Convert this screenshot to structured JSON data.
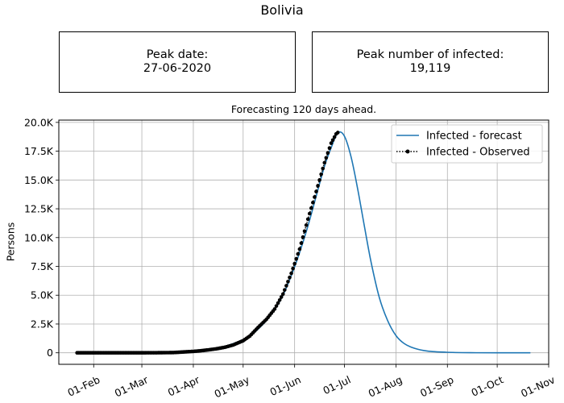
{
  "figure": {
    "title": "Bolivia",
    "peak_date_label": "Peak date:",
    "peak_date_value": "27-06-2020",
    "peak_infected_label": "Peak number of infected:",
    "peak_infected_value": "19,119"
  },
  "chart_data": {
    "type": "line",
    "title": "Forecasting 120 days ahead.",
    "xlabel": "",
    "ylabel": "Persons",
    "x_axis": "date",
    "xlim": [
      "2020-01-11",
      "2020-11-01"
    ],
    "ylim": [
      -1000,
      20200
    ],
    "grid": true,
    "legend_position": "top-right",
    "x_tick_labels": [
      "01-Feb",
      "01-Mar",
      "01-Apr",
      "01-May",
      "01-Jun",
      "01-Jul",
      "01-Aug",
      "01-Sep",
      "01-Oct",
      "01-Nov"
    ],
    "x_tick_dates": [
      "2020-02-01",
      "2020-03-01",
      "2020-04-01",
      "2020-05-01",
      "2020-06-01",
      "2020-07-01",
      "2020-08-01",
      "2020-09-01",
      "2020-10-01",
      "2020-11-01"
    ],
    "y_ticks": [
      0,
      2500,
      5000,
      7500,
      10000,
      12500,
      15000,
      17500,
      20000
    ],
    "y_tick_labels": [
      "0",
      "2.5K",
      "5.0K",
      "7.5K",
      "10.0K",
      "12.5K",
      "15.0K",
      "17.5K",
      "20.0K"
    ],
    "series": [
      {
        "name": "Infected - forecast",
        "color": "#1f77b4",
        "style": "solid line",
        "x": [
          "2020-01-22",
          "2020-03-01",
          "2020-03-20",
          "2020-04-01",
          "2020-04-10",
          "2020-04-20",
          "2020-05-01",
          "2020-05-08",
          "2020-05-15",
          "2020-05-20",
          "2020-05-25",
          "2020-05-30",
          "2020-06-04",
          "2020-06-09",
          "2020-06-14",
          "2020-06-19",
          "2020-06-23",
          "2020-06-27",
          "2020-07-01",
          "2020-07-05",
          "2020-07-09",
          "2020-07-13",
          "2020-07-17",
          "2020-07-22",
          "2020-07-27",
          "2020-08-01",
          "2020-08-06",
          "2020-08-12",
          "2020-08-20",
          "2020-08-31",
          "2020-09-15",
          "2020-10-01",
          "2020-10-21"
        ],
        "y": [
          0,
          15,
          60,
          140,
          280,
          560,
          1150,
          1800,
          2800,
          3750,
          5000,
          6700,
          8700,
          11000,
          13600,
          16200,
          17800,
          19100,
          18800,
          17000,
          14200,
          11000,
          7900,
          4800,
          2800,
          1500,
          800,
          400,
          150,
          50,
          10,
          0,
          0
        ]
      },
      {
        "name": "Infected - Observed",
        "color": "#000000",
        "style": "dotted line with dot markers",
        "x": [
          "2020-01-22",
          "2020-02-10",
          "2020-03-01",
          "2020-03-10",
          "2020-03-20",
          "2020-03-25",
          "2020-04-01",
          "2020-04-05",
          "2020-04-10",
          "2020-04-15",
          "2020-04-20",
          "2020-04-25",
          "2020-05-01",
          "2020-05-05",
          "2020-05-10",
          "2020-05-15",
          "2020-05-20",
          "2020-05-25",
          "2020-05-30",
          "2020-06-04",
          "2020-06-09",
          "2020-06-14",
          "2020-06-19",
          "2020-06-23",
          "2020-06-26",
          "2020-06-27"
        ],
        "y": [
          0,
          0,
          0,
          5,
          20,
          60,
          120,
          170,
          250,
          350,
          480,
          680,
          1050,
          1450,
          2200,
          2900,
          3800,
          5100,
          6900,
          9000,
          11600,
          14000,
          16500,
          18200,
          19000,
          19119
        ]
      }
    ]
  }
}
